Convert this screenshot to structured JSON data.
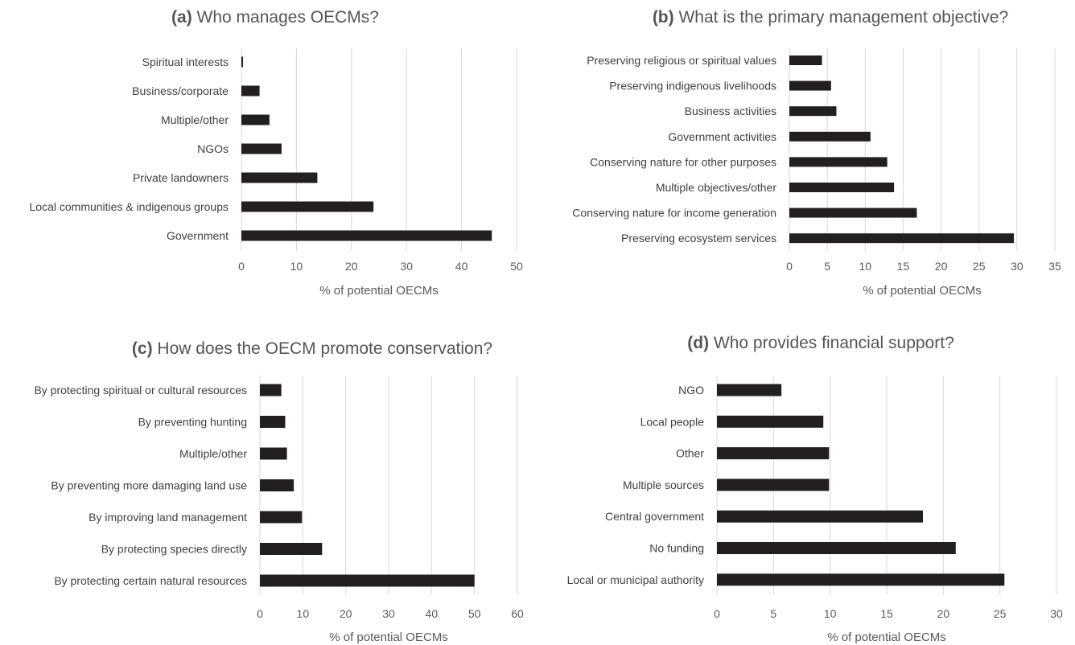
{
  "chart_data": [
    {
      "type": "bar",
      "orientation": "horizontal",
      "panel_letter": "(a)",
      "title": "Who manages OECMs?",
      "xlabel": "% of potential OECMs",
      "xlim": [
        0,
        50
      ],
      "ticks": [
        0,
        10,
        20,
        30,
        40,
        50
      ],
      "categories": [
        "Spiritual interests",
        "Business/corporate",
        "Multiple/other",
        "NGOs",
        "Private landowners",
        "Local communities & indigenous groups",
        "Government"
      ],
      "values": [
        0.3,
        3.3,
        5.1,
        7.3,
        13.8,
        24.0,
        45.5
      ],
      "bar_color": "#231f20",
      "grid": true
    },
    {
      "type": "bar",
      "orientation": "horizontal",
      "panel_letter": "(b)",
      "title": "What is the primary management objective?",
      "xlabel": "% of potential OECMs",
      "xlim": [
        0,
        35
      ],
      "ticks": [
        0,
        5,
        10,
        15,
        20,
        25,
        30,
        35
      ],
      "categories": [
        "Preserving religious or spiritual values",
        "Preserving indigenous livelihoods",
        "Business activities",
        "Government activities",
        "Conserving nature for other purposes",
        "Multiple objectives/other",
        "Conserving nature for income generation",
        "Preserving ecosystem services"
      ],
      "values": [
        4.3,
        5.5,
        6.2,
        10.7,
        12.9,
        13.8,
        16.8,
        29.6
      ],
      "bar_color": "#231f20",
      "grid": true
    },
    {
      "type": "bar",
      "orientation": "horizontal",
      "panel_letter": "(c)",
      "title": "How does the OECM promote conservation?",
      "xlabel": "% of potential OECMs",
      "xlim": [
        0,
        60
      ],
      "ticks": [
        0,
        10,
        20,
        30,
        40,
        50,
        60
      ],
      "categories": [
        "By protecting spiritual or cultural resources",
        "By preventing hunting",
        "Multiple/other",
        "By preventing more damaging land use",
        "By improving land management",
        "By protecting species directly",
        "By protecting certain natural resources"
      ],
      "values": [
        5.0,
        5.9,
        6.3,
        7.9,
        9.8,
        14.5,
        50.0
      ],
      "bar_color": "#231f20",
      "grid": true
    },
    {
      "type": "bar",
      "orientation": "horizontal",
      "panel_letter": "(d)",
      "title": "Who provides financial support?",
      "xlabel": "% of potential OECMs",
      "xlim": [
        0,
        30
      ],
      "ticks": [
        0,
        5,
        10,
        15,
        20,
        25,
        30
      ],
      "categories": [
        "NGO",
        "Local people",
        "Other",
        "Multiple sources",
        "Central government",
        "No funding",
        "Local or municipal authority"
      ],
      "values": [
        5.7,
        9.4,
        9.9,
        9.9,
        18.2,
        21.1,
        25.4
      ],
      "bar_color": "#231f20",
      "grid": true
    }
  ]
}
